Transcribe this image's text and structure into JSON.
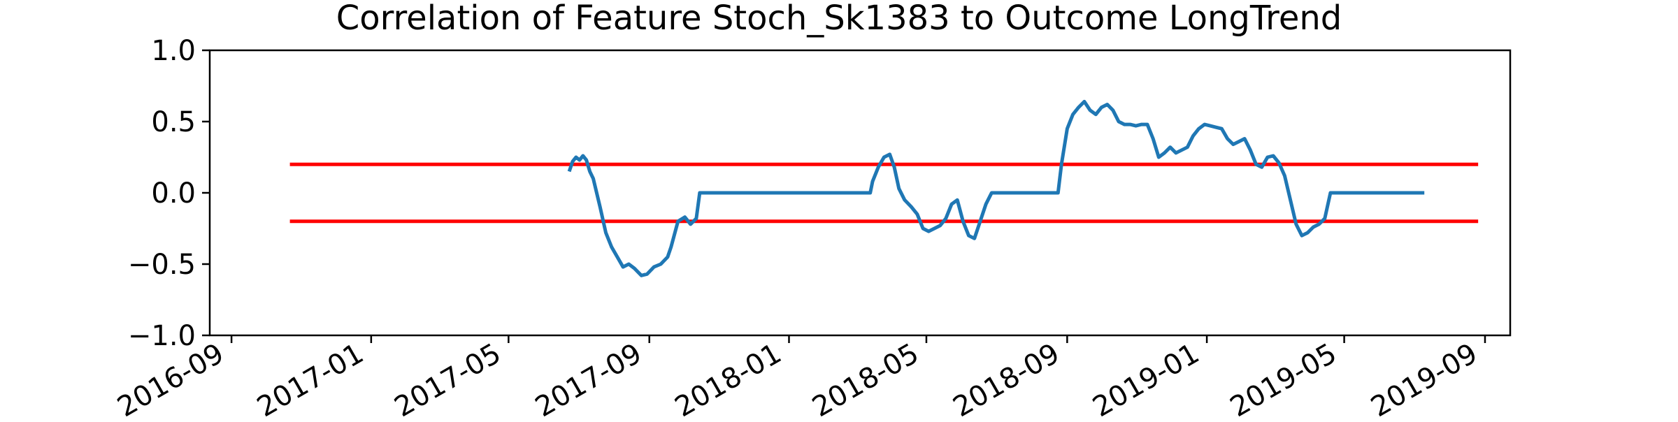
{
  "chart_data": {
    "type": "line",
    "title": "Correlation of Feature Stoch_Sk1383 to Outcome LongTrend",
    "xlabel": "",
    "ylabel": "",
    "x_axis_type": "date",
    "xlim": [
      "2016-08-13",
      "2019-09-23"
    ],
    "ylim": [
      -1.0,
      1.0
    ],
    "xtick_labels": [
      "2016-09",
      "2017-01",
      "2017-05",
      "2017-09",
      "2018-01",
      "2018-05",
      "2018-09",
      "2019-01",
      "2019-05",
      "2019-09"
    ],
    "ytick_labels": [
      "1.0",
      "0.5",
      "0.0",
      "−0.5",
      "−1.0"
    ],
    "grid": false,
    "legend": "none",
    "series": [
      {
        "color": "#1f77b4",
        "x": [
          "2017-06-23",
          "2017-06-26",
          "2017-06-29",
          "2017-07-02",
          "2017-07-05",
          "2017-07-08",
          "2017-07-11",
          "2017-07-14",
          "2017-07-17",
          "2017-07-20",
          "2017-07-25",
          "2017-07-30",
          "2017-08-04",
          "2017-08-09",
          "2017-08-14",
          "2017-08-19",
          "2017-08-25",
          "2017-08-30",
          "2017-09-05",
          "2017-09-11",
          "2017-09-17",
          "2017-09-20",
          "2017-09-26",
          "2017-10-02",
          "2017-10-07",
          "2017-10-12",
          "2017-10-15",
          "2017-10-20",
          "2017-10-24",
          "2017-10-27",
          "2017-10-31",
          "2017-11-01",
          "2017-11-15",
          "2017-12-01",
          "2017-12-15",
          "2018-01-01",
          "2018-01-15",
          "2018-02-01",
          "2018-02-15",
          "2018-03-01",
          "2018-03-13",
          "2018-03-15",
          "2018-03-20",
          "2018-03-25",
          "2018-03-30",
          "2018-04-03",
          "2018-04-07",
          "2018-04-12",
          "2018-04-18",
          "2018-04-23",
          "2018-04-28",
          "2018-05-03",
          "2018-05-08",
          "2018-05-13",
          "2018-05-18",
          "2018-05-23",
          "2018-05-28",
          "2018-06-02",
          "2018-06-07",
          "2018-06-12",
          "2018-06-17",
          "2018-06-22",
          "2018-06-27",
          "2018-07-02",
          "2018-07-07",
          "2018-07-12",
          "2018-07-17",
          "2018-07-22",
          "2018-07-25",
          "2018-08-01",
          "2018-08-15",
          "2018-08-24",
          "2018-08-27",
          "2018-09-01",
          "2018-09-06",
          "2018-09-11",
          "2018-09-16",
          "2018-09-21",
          "2018-09-26",
          "2018-10-01",
          "2018-10-06",
          "2018-10-11",
          "2018-10-16",
          "2018-10-21",
          "2018-10-26",
          "2018-10-31",
          "2018-11-05",
          "2018-11-10",
          "2018-11-15",
          "2018-11-20",
          "2018-11-25",
          "2018-11-30",
          "2018-12-05",
          "2018-12-10",
          "2018-12-15",
          "2018-12-20",
          "2018-12-25",
          "2018-12-30",
          "2019-01-04",
          "2019-01-09",
          "2019-01-14",
          "2019-01-19",
          "2019-01-24",
          "2019-01-29",
          "2019-02-03",
          "2019-02-08",
          "2019-02-13",
          "2019-02-18",
          "2019-02-23",
          "2019-02-28",
          "2019-03-05",
          "2019-03-10",
          "2019-03-15",
          "2019-03-20",
          "2019-03-25",
          "2019-03-30",
          "2019-04-04",
          "2019-04-09",
          "2019-04-14",
          "2019-04-19",
          "2019-04-24",
          "2019-04-29",
          "2019-05-04",
          "2019-05-10",
          "2019-05-15",
          "2019-06-01",
          "2019-06-15",
          "2019-07-01",
          "2019-07-10"
        ],
        "y": [
          0.15,
          0.22,
          0.25,
          0.23,
          0.26,
          0.23,
          0.15,
          0.1,
          0.0,
          -0.1,
          -0.28,
          -0.38,
          -0.45,
          -0.52,
          -0.5,
          -0.53,
          -0.58,
          -0.57,
          -0.52,
          -0.5,
          -0.45,
          -0.38,
          -0.2,
          -0.17,
          -0.22,
          -0.18,
          0.0,
          0.0,
          0.0,
          0.0,
          0.0,
          0.0,
          0.0,
          0.0,
          0.0,
          0.0,
          0.0,
          0.0,
          0.0,
          0.0,
          0.0,
          0.08,
          0.18,
          0.25,
          0.27,
          0.18,
          0.03,
          -0.05,
          -0.1,
          -0.15,
          -0.25,
          -0.27,
          -0.25,
          -0.23,
          -0.18,
          -0.08,
          -0.05,
          -0.2,
          -0.3,
          -0.32,
          -0.2,
          -0.08,
          0.0,
          0.0,
          0.0,
          0.0,
          0.0,
          0.0,
          0.0,
          0.0,
          0.0,
          0.0,
          0.2,
          0.45,
          0.55,
          0.6,
          0.64,
          0.58,
          0.55,
          0.6,
          0.62,
          0.58,
          0.5,
          0.48,
          0.48,
          0.47,
          0.48,
          0.48,
          0.38,
          0.25,
          0.28,
          0.32,
          0.28,
          0.3,
          0.32,
          0.4,
          0.45,
          0.48,
          0.47,
          0.46,
          0.45,
          0.38,
          0.34,
          0.36,
          0.38,
          0.3,
          0.2,
          0.18,
          0.25,
          0.26,
          0.21,
          0.12,
          -0.05,
          -0.22,
          -0.3,
          -0.28,
          -0.24,
          -0.22,
          -0.18,
          0.0,
          0.0,
          0.0,
          0.0,
          0.0,
          0.0,
          0.0,
          0.0,
          0.0,
          0.0
        ]
      }
    ],
    "reference_lines": [
      {
        "y": 0.2,
        "color": "#ff0000",
        "x_start": "2016-10-22",
        "x_end": "2019-08-26"
      },
      {
        "y": -0.2,
        "color": "#ff0000",
        "x_start": "2016-10-22",
        "x_end": "2019-08-26"
      }
    ]
  }
}
